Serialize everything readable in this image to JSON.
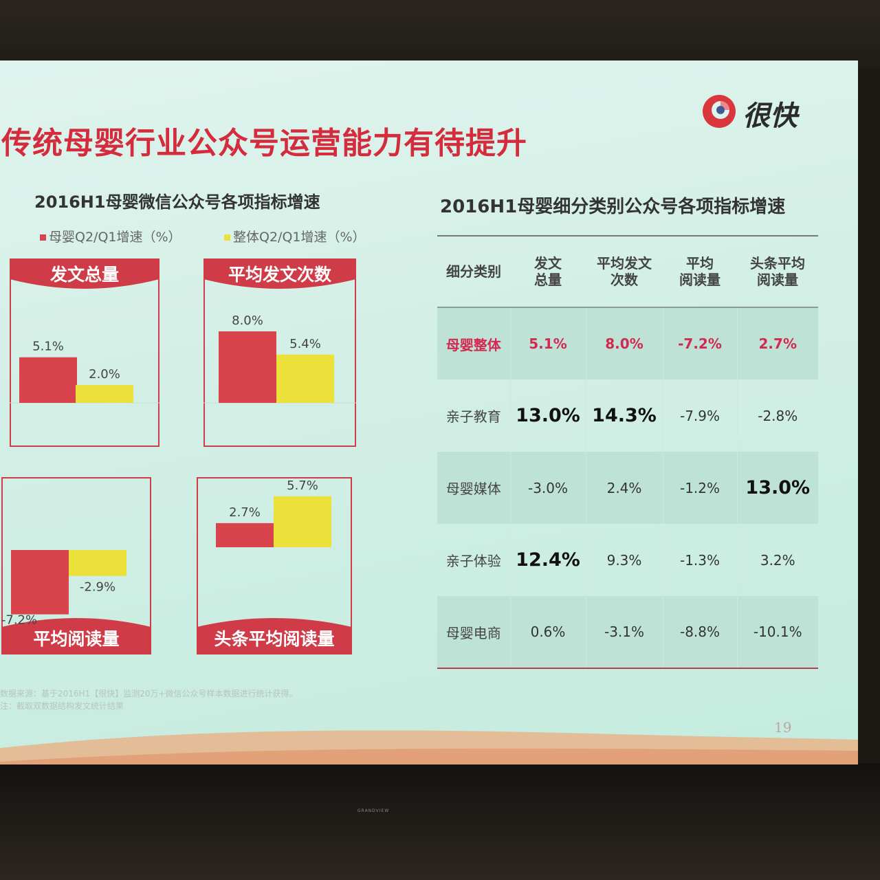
{
  "slide": {
    "title": "传统母婴行业公众号运营能力有待提升",
    "logo_text": "很快",
    "page_number": "19",
    "source_lines": [
      "数据来源：基于2016H1【很快】监测20万+微信公众号样本数据进行统计获得。",
      "注：截取双数据结构发文统计结果"
    ]
  },
  "left": {
    "title": "2016H1母婴微信公众号各项指标增速",
    "legend": [
      "母婴Q2/Q1增速（%）",
      "整体Q2/Q1增速（%）"
    ]
  },
  "chart_data": [
    {
      "type": "bar",
      "title": "发文总量",
      "categories": [
        "母婴Q2/Q1增速（%）",
        "整体Q2/Q1增速（%）"
      ],
      "values": [
        5.1,
        2.0
      ],
      "labels": [
        "5.1%",
        "2.0%"
      ]
    },
    {
      "type": "bar",
      "title": "平均发文次数",
      "categories": [
        "母婴Q2/Q1增速（%）",
        "整体Q2/Q1增速（%）"
      ],
      "values": [
        8.0,
        5.4
      ],
      "labels": [
        "8.0%",
        "5.4%"
      ]
    },
    {
      "type": "bar",
      "title": "平均阅读量",
      "categories": [
        "母婴Q2/Q1增速（%）",
        "整体Q2/Q1增速（%）"
      ],
      "values": [
        -7.2,
        -2.9
      ],
      "labels": [
        "-7.2%",
        "-2.9%"
      ]
    },
    {
      "type": "bar",
      "title": "头条平均阅读量",
      "categories": [
        "母婴Q2/Q1增速（%）",
        "整体Q2/Q1增速（%）"
      ],
      "values": [
        2.7,
        5.7
      ],
      "labels": [
        "2.7%",
        "5.7%"
      ]
    }
  ],
  "right": {
    "title": "2016H1母婴细分类别公众号各项指标增速",
    "headers": [
      "细分类别",
      "发文\n总量",
      "平均发文\n次数",
      "平均\n阅读量",
      "头条平均\n阅读量"
    ],
    "rows": [
      [
        "母婴整体",
        "5.1%",
        "8.0%",
        "-7.2%",
        "2.7%"
      ],
      [
        "亲子教育",
        "13.0%",
        "14.3%",
        "-7.9%",
        "-2.8%"
      ],
      [
        "母婴媒体",
        "-3.0%",
        "2.4%",
        "-1.2%",
        "13.0%"
      ],
      [
        "亲子体验",
        "12.4%",
        "9.3%",
        "-1.3%",
        "3.2%"
      ],
      [
        "母婴电商",
        "0.6%",
        "-3.1%",
        "-8.8%",
        "-10.1%"
      ]
    ]
  },
  "colors": {
    "red": "#d9434b",
    "yellow": "#ece13a",
    "title_red": "#d42c3c",
    "highlight": "#d3284f",
    "frame": "#cf3b47"
  },
  "projector": {
    "brand": "GRANDVIEW"
  }
}
